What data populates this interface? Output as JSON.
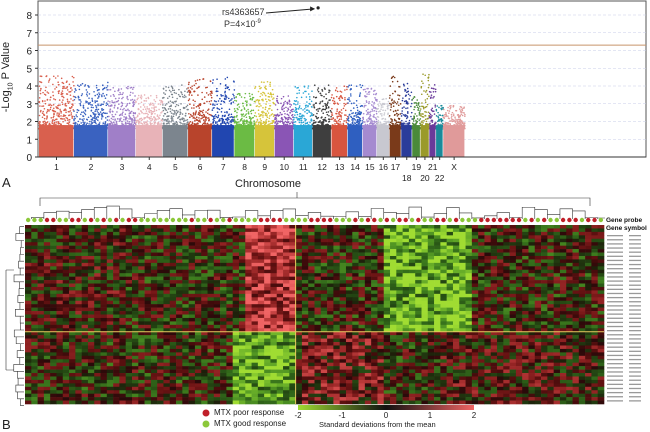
{
  "panel_a_label": "A",
  "panel_b_label": "B",
  "chart_data": [
    {
      "type": "scatter",
      "subtype": "manhattan",
      "xlabel": "Chromosome",
      "ylabel": "-Log10 P Value",
      "ylabel_main": "-Log",
      "ylabel_sub": "10",
      "ylabel_tail": " P Value",
      "ylim": [
        0,
        8.5
      ],
      "yticks": [
        "0",
        "1",
        "2",
        "3",
        "4",
        "5",
        "6",
        "7",
        "8"
      ],
      "significance_threshold": 6.3,
      "grid": true,
      "chromosomes": [
        {
          "name": "1",
          "length": 249,
          "color": "#d9604e",
          "max": 4.6
        },
        {
          "name": "2",
          "length": 243,
          "color": "#3a62c0",
          "max": 4.2
        },
        {
          "name": "3",
          "length": 198,
          "color": "#a07fc8",
          "max": 4.0
        },
        {
          "name": "4",
          "length": 191,
          "color": "#e8b3b8",
          "max": 3.5
        },
        {
          "name": "5",
          "length": 181,
          "color": "#7c858e",
          "max": 4.1
        },
        {
          "name": "6",
          "length": 171,
          "color": "#b8442c",
          "max": 4.4
        },
        {
          "name": "7",
          "length": 159,
          "color": "#2146b0",
          "max": 4.5
        },
        {
          "name": "8",
          "length": 146,
          "color": "#6bbb44",
          "max": 3.6
        },
        {
          "name": "9",
          "length": 141,
          "color": "#d6c43a",
          "max": 4.3
        },
        {
          "name": "10",
          "length": 136,
          "color": "#8a55b5",
          "max": 3.5
        },
        {
          "name": "11",
          "length": 135,
          "color": "#2aa7d6",
          "max": 4.0
        },
        {
          "name": "12",
          "length": 134,
          "color": "#3e3e3e",
          "max": 4.1
        },
        {
          "name": "13",
          "length": 115,
          "color": "#d8553f",
          "max": 4.0
        },
        {
          "name": "14",
          "length": 107,
          "color": "#2f5fc0",
          "max": 4.1
        },
        {
          "name": "15",
          "length": 102,
          "color": "#a58ad0",
          "max": 3.9
        },
        {
          "name": "16",
          "length": 90,
          "color": "#c8c8d0",
          "max": 3.3
        },
        {
          "name": "17",
          "length": 83,
          "color": "#7a3a1a",
          "max": 4.6
        },
        {
          "name": "18",
          "length": 78,
          "color": "#2a3c9a",
          "max": 4.2
        },
        {
          "name": "19",
          "length": 59,
          "color": "#4a8a3a",
          "max": 3.4
        },
        {
          "name": "20",
          "length": 63,
          "color": "#9a9a2a",
          "max": 4.7
        },
        {
          "name": "21",
          "length": 48,
          "color": "#6a3a9a",
          "max": 4.2
        },
        {
          "name": "22",
          "length": 51,
          "color": "#1a8a9a",
          "max": 3.1
        },
        {
          "name": "X",
          "length": 155,
          "color": "#e09a9a",
          "max": 2.9
        }
      ],
      "annotation": {
        "snp": "rs4363657",
        "p_text": "P=4×10",
        "p_exp": "-9",
        "chromosome": "12",
        "value": 8.4
      }
    },
    {
      "type": "heatmap",
      "colorbar_label": "Standard deviations from the mean",
      "colorbar_ticks": [
        "-2",
        "-1",
        "0",
        "1",
        "2"
      ],
      "range": [
        -2,
        2
      ],
      "gene_columns": [
        "Gene probe",
        "Gene symbol"
      ],
      "legend": [
        {
          "label": "MTX poor response",
          "color": "#c0202a"
        },
        {
          "label": "MTX good response",
          "color": "#8cc83a"
        }
      ]
    }
  ]
}
